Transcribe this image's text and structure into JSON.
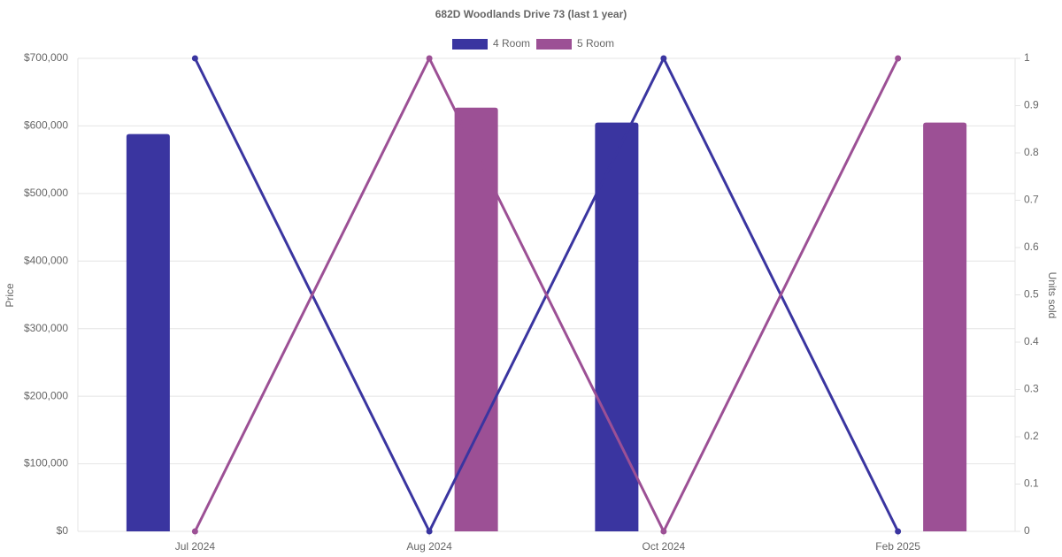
{
  "chart_data": {
    "type": "bar-line",
    "title": "682D Woodlands Drive 73 (last 1 year)",
    "y_label": "Price",
    "y2_label": "Units sold",
    "categories": [
      "Jul 2024",
      "Aug 2024",
      "Oct 2024",
      "Feb 2025"
    ],
    "series": [
      {
        "name": "4 Room",
        "color": "#3a35a0",
        "values": [
          588000,
          null,
          605000,
          null
        ],
        "units_sold": [
          1,
          0,
          1,
          0
        ]
      },
      {
        "name": "5 Room",
        "color": "#9c5095",
        "values": [
          null,
          627000,
          null,
          605000
        ],
        "units_sold": [
          0,
          1,
          0,
          1
        ]
      }
    ],
    "ylim": [
      0,
      700000
    ],
    "yticks": [
      {
        "value": 0,
        "label": "$0"
      },
      {
        "value": 100000,
        "label": "$100,000"
      },
      {
        "value": 200000,
        "label": "$200,000"
      },
      {
        "value": 300000,
        "label": "$300,000"
      },
      {
        "value": 400000,
        "label": "$400,000"
      },
      {
        "value": 500000,
        "label": "$500,000"
      },
      {
        "value": 600000,
        "label": "$600,000"
      },
      {
        "value": 700000,
        "label": "$700,000"
      }
    ],
    "y2lim": [
      0,
      1
    ],
    "y2ticks": [
      0,
      0.1,
      0.2,
      0.3,
      0.4,
      0.5,
      0.6,
      0.7,
      0.8,
      0.9,
      1
    ],
    "grid": true,
    "legend": "top"
  }
}
